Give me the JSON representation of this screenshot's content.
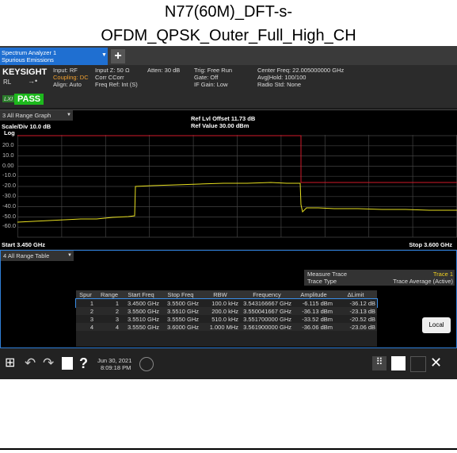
{
  "title": [
    "N77(60M)_DFT-s-",
    "OFDM_QPSK_Outer_Full_High_CH"
  ],
  "tab": {
    "line1": "Spectrum Analyzer 1",
    "line2": "Spurious Emissions"
  },
  "status": {
    "brand": "KEYSIGHT",
    "input": "Input: RF",
    "coupling": "Coupling: DC",
    "align": "Align: Auto",
    "rl": "RL",
    "lxi": "LXI",
    "pass": "PASS",
    "input_z": "Input Z: 50 Ω",
    "corr": "Corr CCorr",
    "freq_ref": "Freq Ref: Int (S)",
    "atten": "Atten: 30 dB",
    "trig": "Trig: Free Run",
    "gate": "Gate: Off",
    "if_gain": "IF Gain: Low",
    "center_freq": "Center Freq: 22.005000000 GHz",
    "avg_hold": "Avg|Hold: 100/100",
    "radio_std": "Radio Std: None"
  },
  "graph": {
    "window": "3 All Range Graph",
    "scale": "Scale/Div 10.0 dB",
    "scale_type": "Log",
    "ref_offset": "Ref Lvl Offset 11.73 dB",
    "ref_value": "Ref Value 30.00 dBm",
    "y_labels": [
      "20.0",
      "10.0",
      "0.00",
      "-10.0",
      "-20.0",
      "-30.0",
      "-40.0",
      "-50.0",
      "-60.0"
    ],
    "start": "Start 3.450 GHz",
    "stop": "Stop 3.600 GHz"
  },
  "table_panel": {
    "window": "4 All Range Table",
    "measure_trace_label": "Measure Trace",
    "measure_trace": "Trace 1",
    "trace_type_label": "Trace Type",
    "trace_type": "Trace Average (Active)",
    "local": "Local"
  },
  "table": {
    "columns": [
      "Spur",
      "Range",
      "Start Freq",
      "Stop Freq",
      "RBW",
      "Frequency",
      "Amplitude",
      "ΔLimit"
    ],
    "rows": [
      [
        "1",
        "1",
        "3.4500 GHz",
        "3.5500 GHz",
        "100.0 kHz",
        "3.543166667 GHz",
        "-6.115 dBm",
        "-36.12 dB"
      ],
      [
        "2",
        "2",
        "3.5500 GHz",
        "3.5510 GHz",
        "200.0 kHz",
        "3.550041667 GHz",
        "-36.13 dBm",
        "-23.13 dB"
      ],
      [
        "3",
        "3",
        "3.5510 GHz",
        "3.5550 GHz",
        "510.0 kHz",
        "3.551700000 GHz",
        "-33.52 dBm",
        "-20.52 dB"
      ],
      [
        "4",
        "4",
        "3.5550 GHz",
        "3.6000 GHz",
        "1.000 MHz",
        "3.561900000 GHz",
        "-36.06 dBm",
        "-23.06 dB"
      ]
    ]
  },
  "taskbar": {
    "date": "Jun 30, 2021",
    "time": "8:09:18 PM"
  }
}
